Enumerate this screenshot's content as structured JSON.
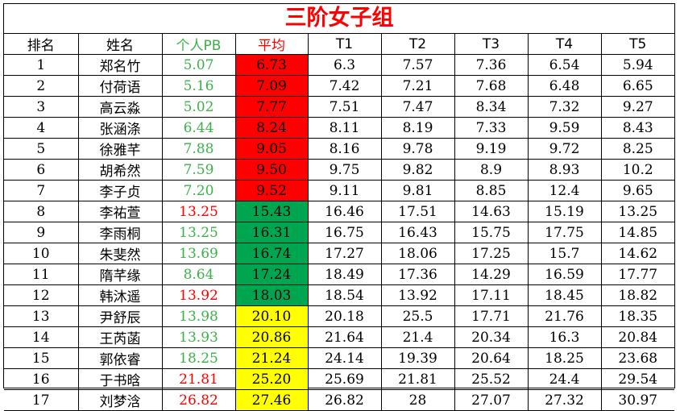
{
  "title": "三阶女子组",
  "headers": [
    "排名",
    "姓名",
    "个人PB",
    "平均",
    "T1",
    "T2",
    "T3",
    "T4",
    "T5"
  ],
  "colors": {
    "title": "#ff0000",
    "pb_good": "#3cb14a",
    "pb_bad": "#ff0000",
    "avg_red": "#ff0000",
    "avg_green": "#00a550",
    "avg_yellow": "#ffff00"
  },
  "rows": [
    {
      "rank": "1",
      "name": "郑名竹",
      "pb": "5.07",
      "pb_color": "green",
      "avg": "6.73",
      "avg_bg": "red",
      "t": [
        "6.3",
        "7.57",
        "7.36",
        "6.54",
        "5.94"
      ]
    },
    {
      "rank": "2",
      "name": "付荷语",
      "pb": "5.16",
      "pb_color": "green",
      "avg": "7.09",
      "avg_bg": "red",
      "t": [
        "7.42",
        "7.21",
        "7.68",
        "6.48",
        "6.65"
      ]
    },
    {
      "rank": "3",
      "name": "高云淼",
      "pb": "5.02",
      "pb_color": "green",
      "avg": "7.77",
      "avg_bg": "red",
      "t": [
        "7.51",
        "7.47",
        "8.34",
        "7.32",
        "9.27"
      ]
    },
    {
      "rank": "4",
      "name": "张涵涤",
      "pb": "6.44",
      "pb_color": "green",
      "avg": "8.24",
      "avg_bg": "red",
      "t": [
        "8.11",
        "8.19",
        "7.33",
        "9.59",
        "8.43"
      ]
    },
    {
      "rank": "5",
      "name": "徐雅芊",
      "pb": "7.88",
      "pb_color": "green",
      "avg": "9.05",
      "avg_bg": "red",
      "t": [
        "8.16",
        "9.78",
        "9.19",
        "9.72",
        "8.25"
      ]
    },
    {
      "rank": "6",
      "name": "胡希然",
      "pb": "7.59",
      "pb_color": "green",
      "avg": "9.50",
      "avg_bg": "red",
      "t": [
        "9.75",
        "9.82",
        "8.9",
        "8.93",
        "10.2"
      ]
    },
    {
      "rank": "7",
      "name": "李子贞",
      "pb": "7.20",
      "pb_color": "green",
      "avg": "9.52",
      "avg_bg": "red",
      "t": [
        "9.11",
        "9.81",
        "8.85",
        "12.4",
        "9.65"
      ]
    },
    {
      "rank": "8",
      "name": "李祐萱",
      "pb": "13.25",
      "pb_color": "red",
      "avg": "15.43",
      "avg_bg": "green",
      "t": [
        "16.46",
        "17.51",
        "14.63",
        "15.19",
        "13.25"
      ]
    },
    {
      "rank": "9",
      "name": "李雨桐",
      "pb": "13.25",
      "pb_color": "green",
      "avg": "16.31",
      "avg_bg": "green",
      "t": [
        "16.75",
        "16.43",
        "15.75",
        "17.75",
        "14.85"
      ]
    },
    {
      "rank": "10",
      "name": "朱斐然",
      "pb": "13.69",
      "pb_color": "green",
      "avg": "16.74",
      "avg_bg": "green",
      "t": [
        "17.27",
        "18.06",
        "17.25",
        "15.7",
        "14.62"
      ]
    },
    {
      "rank": "11",
      "name": "隋芊缘",
      "pb": "8.64",
      "pb_color": "green",
      "avg": "17.24",
      "avg_bg": "green",
      "t": [
        "18.49",
        "17.36",
        "14.29",
        "16.59",
        "17.77"
      ]
    },
    {
      "rank": "12",
      "name": "韩沐遥",
      "pb": "13.92",
      "pb_color": "red",
      "avg": "18.03",
      "avg_bg": "green",
      "t": [
        "18.54",
        "13.92",
        "17.11",
        "18.45",
        "18.82"
      ]
    },
    {
      "rank": "13",
      "name": "尹舒辰",
      "pb": "13.98",
      "pb_color": "green",
      "avg": "20.10",
      "avg_bg": "yellow",
      "t": [
        "20.18",
        "25.5",
        "17.71",
        "21.76",
        "18.35"
      ]
    },
    {
      "rank": "14",
      "name": "王芮菡",
      "pb": "13.93",
      "pb_color": "green",
      "avg": "20.86",
      "avg_bg": "yellow",
      "t": [
        "21.64",
        "21.4",
        "20.34",
        "16.3",
        "20.84"
      ]
    },
    {
      "rank": "15",
      "name": "郭依睿",
      "pb": "18.25",
      "pb_color": "green",
      "avg": "21.24",
      "avg_bg": "yellow",
      "t": [
        "24.14",
        "19.39",
        "20.64",
        "18.25",
        "23.68"
      ]
    },
    {
      "rank": "16",
      "name": "于书晗",
      "pb": "21.81",
      "pb_color": "red",
      "avg": "25.20",
      "avg_bg": "yellow",
      "t": [
        "25.69",
        "21.81",
        "25.52",
        "24.4",
        "29.54"
      ]
    },
    {
      "rank": "17",
      "name": "刘梦浛",
      "pb": "26.82",
      "pb_color": "red",
      "avg": "27.46",
      "avg_bg": "yellow",
      "t": [
        "26.82",
        "28",
        "27.07",
        "27.32",
        "30.97"
      ]
    }
  ]
}
